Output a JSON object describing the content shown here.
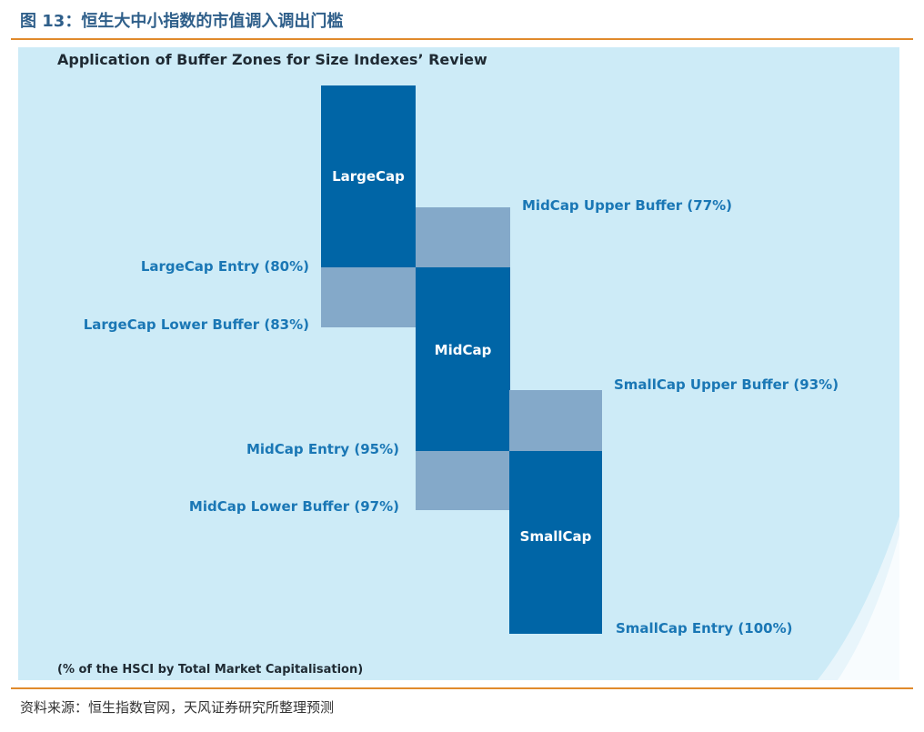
{
  "figure_title": "图 13：恒生大中小指数的市值调入调出门槛",
  "panel_title": "Application of Buffer Zones for Size Indexes’ Review",
  "blocks": {
    "large_cap": "LargeCap",
    "mid_cap": "MidCap",
    "small_cap": "SmallCap"
  },
  "zone_labels": {
    "midcap_upper_buffer": "MidCap Upper Buffer (77%)",
    "largecap_entry": "LargeCap Entry (80%)",
    "largecap_lower_buffer": "LargeCap Lower Buffer (83%)",
    "smallcap_upper_buffer": "SmallCap Upper Buffer (93%)",
    "midcap_entry": "MidCap Entry (95%)",
    "midcap_lower_buffer": "MidCap Lower Buffer (97%)",
    "smallcap_entry": "SmallCap Entry (100%)"
  },
  "thresholds_percent": {
    "midcap_upper_buffer": 77,
    "largecap_entry": 80,
    "largecap_lower_buffer": 83,
    "smallcap_upper_buffer": 93,
    "midcap_entry": 95,
    "midcap_lower_buffer": 97,
    "smallcap_entry": 100
  },
  "axis_note": "(% of the HSCI by Total Market Capitalisation)",
  "source": "资料来源：恒生指数官网，天风证券研究所整理预测",
  "colors": {
    "background": "#cdebf7",
    "main_block": "#0065a6",
    "buffer_block": "#84a9c9",
    "label": "#1a77b5",
    "rule": "#e08a2c"
  }
}
